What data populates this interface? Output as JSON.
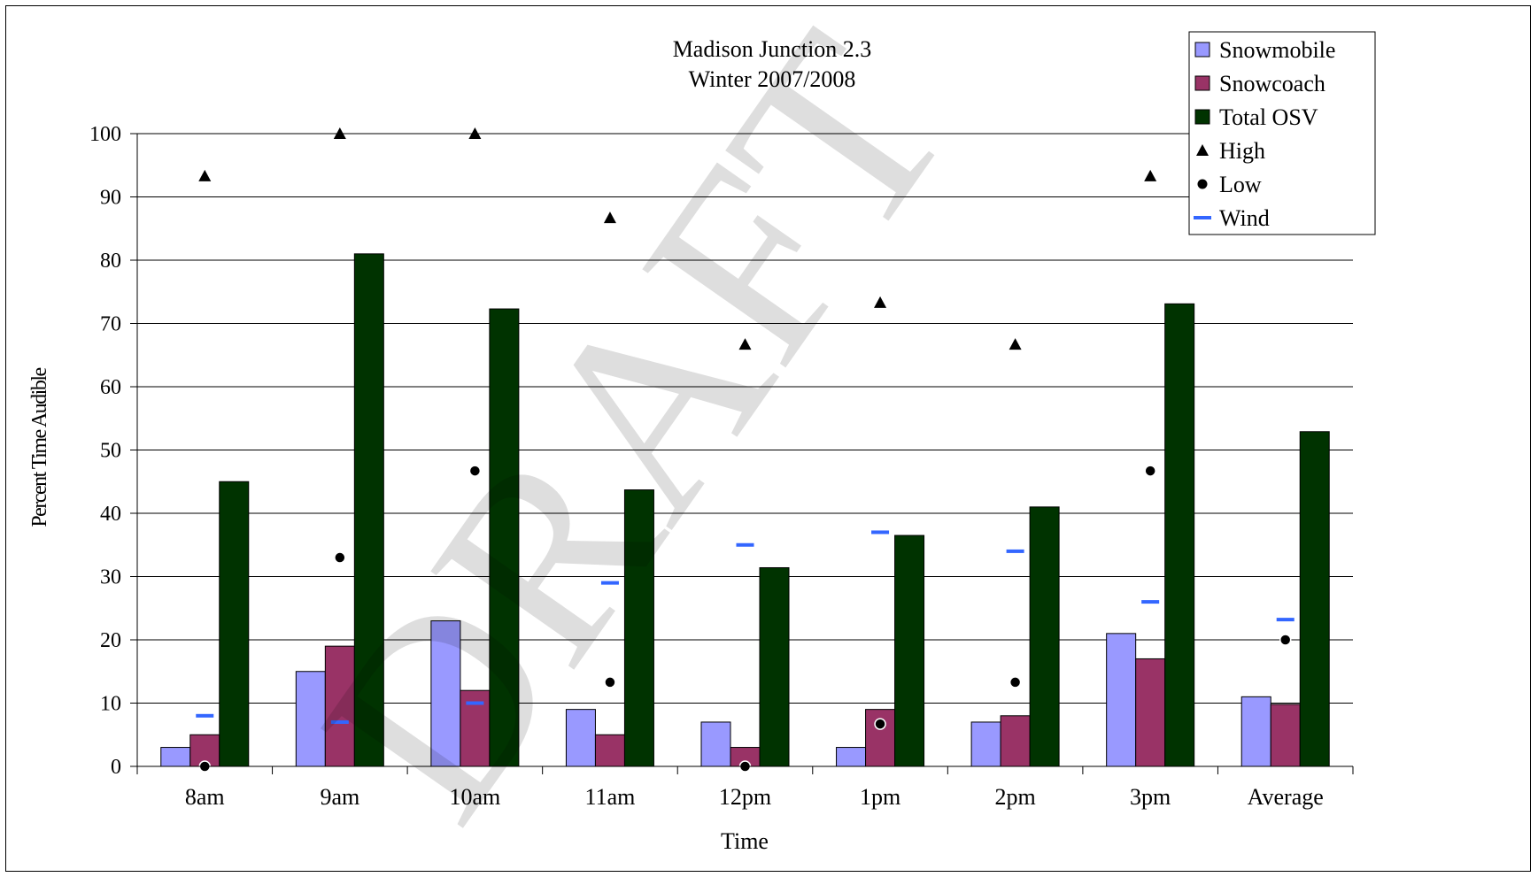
{
  "chart_data": {
    "type": "bar",
    "title": "Madison Junction 2.3",
    "subtitle": "Winter 2007/2008",
    "xlabel": "Time",
    "ylabel": "Percent Time Audible",
    "watermark": "DRAFT",
    "ylim": [
      0,
      100
    ],
    "yticks": [
      "0",
      "10",
      "20",
      "30",
      "40",
      "50",
      "60",
      "70",
      "80",
      "90",
      "100"
    ],
    "grid": true,
    "legend_position": "top-right",
    "categories": [
      "8am",
      "9am",
      "10am",
      "11am",
      "12pm",
      "1pm",
      "2pm",
      "3pm",
      "Average"
    ],
    "series": [
      {
        "name": "Snowmobile",
        "kind": "bar",
        "color": "#9999ff",
        "values": [
          3,
          15,
          23,
          9,
          7,
          3,
          7,
          21,
          11
        ]
      },
      {
        "name": "Snowcoach",
        "kind": "bar",
        "color": "#993366",
        "values": [
          5,
          19,
          12,
          5,
          3,
          9,
          8,
          17,
          9.8
        ]
      },
      {
        "name": "Total OSV",
        "kind": "bar",
        "color": "#003300",
        "values": [
          45,
          81,
          72.3,
          43.7,
          31.4,
          36.5,
          41,
          73.1,
          52.9
        ]
      },
      {
        "name": "High",
        "kind": "marker",
        "marker": "triangle",
        "color": "#000000",
        "values": [
          93.3,
          100,
          100,
          86.7,
          66.7,
          73.3,
          66.7,
          93.3,
          null
        ]
      },
      {
        "name": "Low",
        "kind": "marker",
        "marker": "circle",
        "color": "#000000",
        "values": [
          0,
          33,
          46.7,
          13.3,
          0,
          6.7,
          13.3,
          46.7,
          20
        ]
      },
      {
        "name": "Wind",
        "kind": "marker",
        "marker": "dash",
        "color": "#3366ff",
        "values": [
          8,
          7,
          10,
          29,
          35,
          37,
          34,
          26,
          23.2
        ]
      }
    ]
  }
}
